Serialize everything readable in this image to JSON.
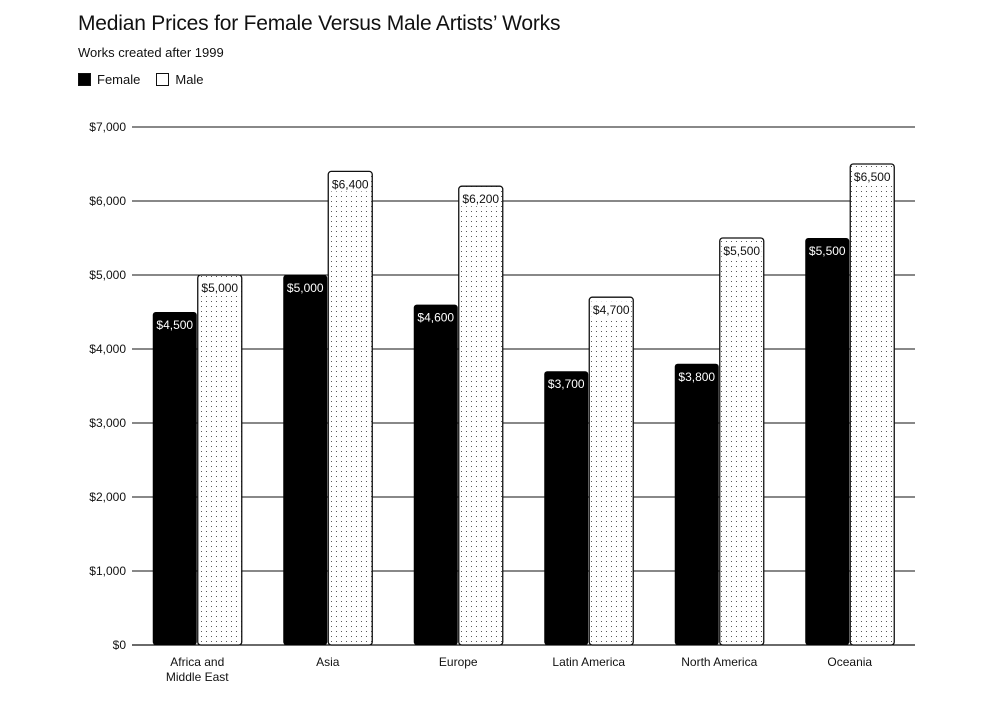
{
  "chart_data": {
    "type": "bar",
    "title": "Median Prices for Female Versus Male Artists’ Works",
    "subtitle": "Works created after 1999",
    "categories": [
      [
        "Africa and",
        "Middle East"
      ],
      [
        "Asia"
      ],
      [
        "Europe"
      ],
      [
        "Latin America"
      ],
      [
        "North America"
      ],
      [
        "Oceania"
      ]
    ],
    "series": [
      {
        "name": "Female",
        "values": [
          4500,
          5000,
          4600,
          3700,
          3800,
          5500
        ],
        "labels": [
          "$4,500",
          "$5,000",
          "$4,600",
          "$3,700",
          "$3,800",
          "$5,500"
        ],
        "color": "#000000"
      },
      {
        "name": "Male",
        "values": [
          5000,
          6400,
          6200,
          4700,
          5500,
          6500
        ],
        "labels": [
          "$5,000",
          "$6,400",
          "$6,200",
          "$4,700",
          "$5,500",
          "$6,500"
        ],
        "color": "#ffffff"
      }
    ],
    "y_ticks": [
      "$0",
      "$1,000",
      "$2,000",
      "$3,000",
      "$4,000",
      "$5,000",
      "$6,000",
      "$7,000"
    ],
    "ylim": [
      0,
      7000
    ],
    "grid": true,
    "legend_position": "top-left"
  }
}
